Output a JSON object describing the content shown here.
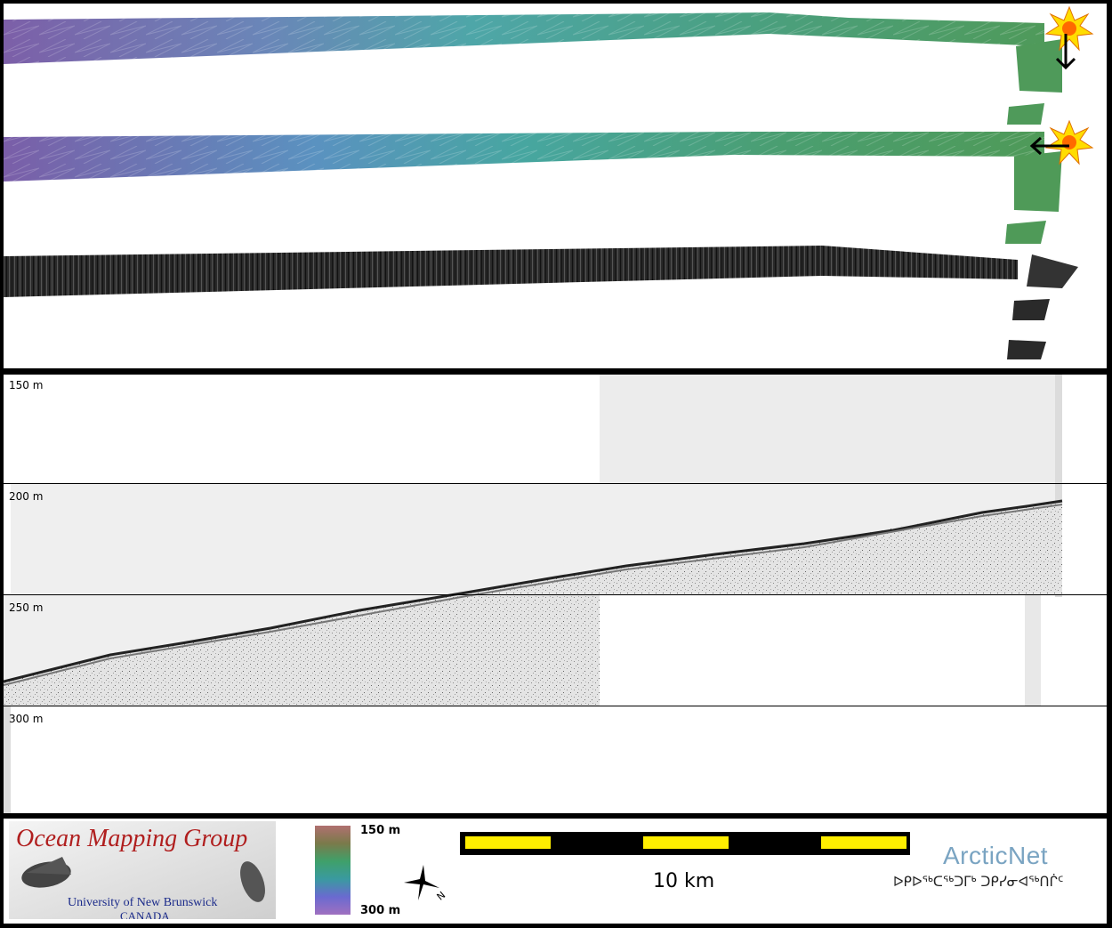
{
  "profile": {
    "depth_labels": [
      "150 m",
      "200 m",
      "250 m",
      "300 m"
    ]
  },
  "legend": {
    "org_title": "Ocean Mapping Group",
    "org_university": "University of New Brunswick",
    "org_country": "CANADA",
    "colorbar_top": "150 m",
    "colorbar_bottom": "300 m",
    "scale_label": "10 km",
    "partner_name": "ArcticNet",
    "partner_syllabics": "ᐅᑭᐅᖅᑕᖅᑐᒥᒃ ᑐᑭᓯᓂᐊᖅᑎᒌᑦ",
    "north_letter": "N"
  },
  "colors": {
    "scale_fill": "#ffee00",
    "org_title": "#b01e1e",
    "org_text": "#1a2a8a",
    "partner": "#7aa4c2"
  },
  "icons": [
    "sun-icon",
    "arrow-down-icon",
    "arrow-left-icon",
    "north-arrow-icon"
  ]
}
